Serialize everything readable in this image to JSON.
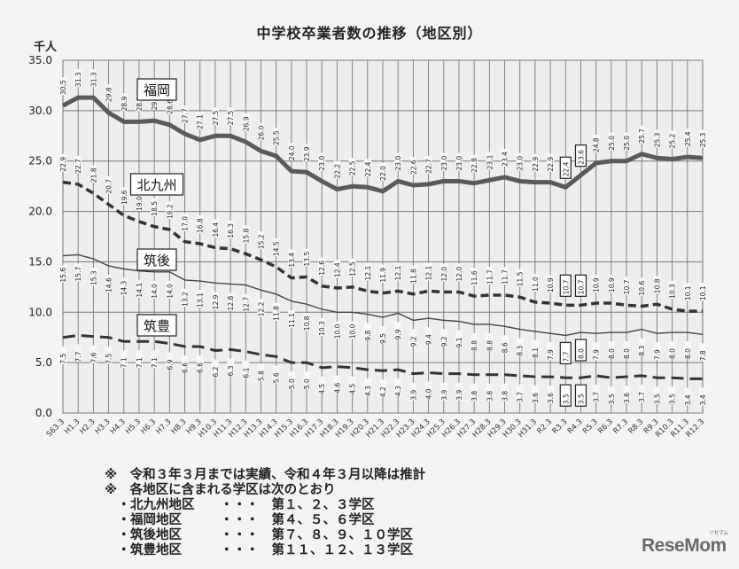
{
  "title": "中学校卒業者数の推移（地区別）",
  "unit": "千人",
  "chart_data": {
    "type": "line",
    "title": "中学校卒業者数の推移（地区別）",
    "xlabel": "",
    "ylabel": "千人",
    "ylim": [
      0,
      35
    ],
    "yticks": [
      "0.0",
      "5.0",
      "10.0",
      "15.0",
      "20.0",
      "25.0",
      "30.0",
      "35.0"
    ],
    "grid": true,
    "legend_position": "inline labels",
    "categories": [
      "S63.3",
      "H1.3",
      "H2.3",
      "H3.3",
      "H4.3",
      "H5.3",
      "H6.3",
      "H7.3",
      "H8.3",
      "H9.3",
      "H10.3",
      "H11.3",
      "H12.3",
      "H13.3",
      "H14.3",
      "H15.3",
      "H16.3",
      "H17.3",
      "H18.3",
      "H19.3",
      "H20.3",
      "H21.3",
      "H22.3",
      "H23.3",
      "H24.3",
      "H25.3",
      "H26.3",
      "H27.3",
      "H28.3",
      "H29.3",
      "H30.3",
      "H31.3",
      "R2.3",
      "R3.3",
      "R4.3",
      "R5.3",
      "R6.3",
      "R7.3",
      "R8.3",
      "R9.3",
      "R10.3",
      "R11.3",
      "R12.3"
    ],
    "highlighted_categories": [
      "R3.3",
      "R4.3"
    ],
    "series": [
      {
        "name": "福岡",
        "style": "thick-solid",
        "values": [
          30.5,
          31.3,
          31.3,
          29.8,
          28.9,
          28.9,
          29.0,
          28.6,
          27.7,
          27.1,
          27.5,
          27.5,
          26.9,
          26.0,
          25.5,
          24.0,
          23.9,
          23.0,
          22.2,
          22.5,
          22.4,
          22.0,
          23.0,
          22.6,
          22.7,
          23.0,
          23.0,
          22.8,
          23.1,
          23.4,
          23.0,
          22.9,
          22.9,
          22.4,
          23.6,
          24.8,
          25.0,
          25.0,
          25.7,
          25.3,
          25.2,
          25.4,
          25.3
        ]
      },
      {
        "name": "北九州",
        "style": "thick-dashed",
        "values": [
          22.9,
          22.7,
          21.8,
          20.7,
          19.6,
          19.0,
          18.5,
          18.2,
          17.0,
          16.8,
          16.4,
          16.3,
          15.8,
          15.2,
          14.5,
          13.4,
          13.5,
          12.6,
          12.4,
          12.5,
          12.1,
          11.9,
          12.1,
          11.8,
          12.1,
          12.0,
          12.0,
          11.6,
          11.7,
          11.7,
          11.5,
          11.0,
          10.9,
          10.7,
          10.7,
          10.9,
          10.9,
          10.7,
          10.6,
          10.8,
          10.3,
          10.1,
          10.1
        ]
      },
      {
        "name": "筑後",
        "style": "thin-solid",
        "values": [
          15.6,
          15.7,
          15.3,
          14.6,
          14.3,
          14.1,
          14.0,
          14.0,
          13.2,
          13.1,
          12.9,
          12.8,
          12.7,
          12.2,
          11.8,
          11.1,
          10.8,
          10.3,
          10.0,
          10.0,
          9.8,
          9.5,
          9.9,
          9.2,
          9.4,
          9.2,
          9.1,
          8.8,
          8.8,
          8.6,
          8.3,
          8.1,
          7.9,
          7.7,
          8.0,
          7.9,
          8.0,
          8.0,
          8.3,
          7.9,
          8.0,
          8.0,
          7.8
        ]
      },
      {
        "name": "筑豊",
        "style": "dash-gap",
        "values": [
          7.5,
          7.7,
          7.6,
          7.5,
          7.1,
          7.1,
          7.1,
          6.9,
          6.6,
          6.6,
          6.2,
          6.3,
          6.1,
          5.8,
          5.6,
          5.0,
          5.0,
          4.5,
          4.6,
          4.5,
          4.3,
          4.2,
          4.3,
          3.9,
          4.0,
          3.9,
          3.9,
          3.8,
          3.8,
          3.8,
          3.7,
          3.6,
          3.6,
          3.5,
          3.5,
          3.7,
          3.5,
          3.6,
          3.7,
          3.5,
          3.5,
          3.4,
          3.4
        ]
      }
    ]
  },
  "notes": [
    "※　令和３年３月までは実績、令和４年３月以降は推計",
    "※　各地区に含まれる学区は次のとおり",
    "　・北九州地区　　・・・　第１、２、３学区",
    "　・福岡地区　　　・・・　第４、５、６学区",
    "　・筑後地区　　　・・・　第７、８、９、１０学区",
    "　・筑豊地区　　　・・・　第１１、１２、１３学区"
  ],
  "logo": {
    "text": "ReseMom",
    "sub": "リセマム"
  },
  "colors": {
    "line": "#555555",
    "grid": "#777777",
    "background": "#f4f4f2"
  }
}
